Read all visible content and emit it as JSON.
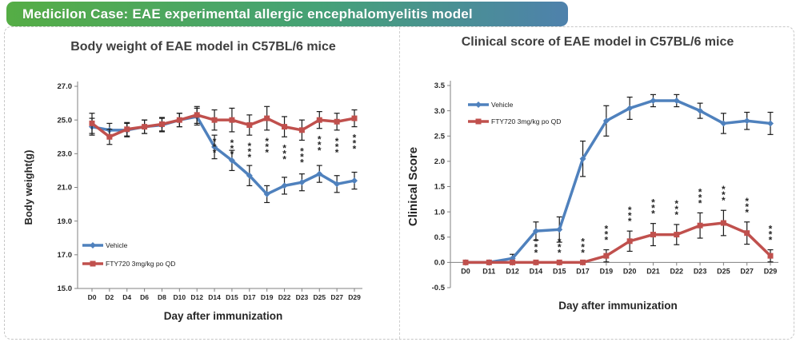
{
  "banner": {
    "text": "Medicilon Case: EAE experimental allergic encephalomyelitis model",
    "gradient_from": "#55ad45",
    "gradient_mid": "#45a276",
    "gradient_to": "#4e81ac",
    "text_color": "#ffffff"
  },
  "colors": {
    "vehicle_blue": "#4f81bd",
    "fty720_red": "#c0504d",
    "error_bar": "#1a1a1a",
    "axis_gray": "#808080",
    "label_dark": "#262626"
  },
  "chart_data": [
    {
      "type": "line",
      "title": "Body weight of EAE model in C57BL/6 mice",
      "xlabel": "Day after immunization",
      "ylabel": "Body weight(g)",
      "ylim": [
        15.0,
        27.0
      ],
      "xaxis_at": 15.0,
      "grid": false,
      "legend_position": "inside-bottom-left",
      "yticks": [
        {
          "v": 27.0,
          "label": "27.0"
        },
        {
          "v": 25.0,
          "label": "25.0"
        },
        {
          "v": 23.0,
          "label": "23.0"
        },
        {
          "v": 21.0,
          "label": "21.0"
        },
        {
          "v": 19.0,
          "label": "19.0"
        },
        {
          "v": 17.0,
          "label": "17.0"
        },
        {
          "v": 15.0,
          "label": "15.0"
        }
      ],
      "categories": [
        "D0",
        "D2",
        "D4",
        "D6",
        "D8",
        "D10",
        "D12",
        "D14",
        "D15",
        "D17",
        "D19",
        "D22",
        "D23",
        "D25",
        "D27",
        "D29"
      ],
      "series": [
        {
          "name": "Vehicle",
          "color": "#4f81bd",
          "marker": "diamond",
          "values": [
            24.6,
            24.4,
            24.4,
            24.6,
            24.7,
            25.0,
            25.2,
            23.4,
            22.6,
            21.7,
            20.6,
            21.1,
            21.3,
            21.8,
            21.2,
            21.4
          ],
          "err": [
            0.5,
            0.4,
            0.4,
            0.4,
            0.4,
            0.4,
            0.5,
            0.7,
            0.6,
            0.6,
            0.5,
            0.5,
            0.5,
            0.5,
            0.5,
            0.5
          ]
        },
        {
          "name": "FTY720 3mg/kg po QD",
          "color": "#c0504d",
          "marker": "square",
          "values": [
            24.8,
            24.0,
            24.45,
            24.6,
            24.75,
            25.0,
            25.3,
            25.0,
            25.0,
            24.7,
            25.1,
            24.6,
            24.4,
            25.0,
            24.9,
            25.1
          ],
          "err": [
            0.6,
            0.45,
            0.4,
            0.4,
            0.4,
            0.4,
            0.5,
            0.6,
            0.7,
            0.6,
            0.7,
            0.6,
            0.6,
            0.5,
            0.5,
            0.5
          ]
        }
      ],
      "significance": {
        "symbol": "***",
        "direction": "below",
        "categories": [
          "D14",
          "D15",
          "D17",
          "D19",
          "D22",
          "D23",
          "D25",
          "D27",
          "D29"
        ]
      }
    },
    {
      "type": "line",
      "title": "Clinical score of EAE model in C57BL/6 mice",
      "xlabel": "Day after immunization",
      "ylabel": "Clinical Score",
      "ylim": [
        -0.5,
        3.5
      ],
      "xaxis_at": 0.0,
      "grid": false,
      "legend_position": "inside-top-left",
      "yticks": [
        {
          "v": 3.5,
          "label": "3.5"
        },
        {
          "v": 3.0,
          "label": "3.0"
        },
        {
          "v": 2.5,
          "label": "2.5"
        },
        {
          "v": 2.0,
          "label": "2.0"
        },
        {
          "v": 1.5,
          "label": "1.5"
        },
        {
          "v": 1.0,
          "label": "1.0"
        },
        {
          "v": 0.5,
          "label": "0.5"
        },
        {
          "v": 0.0,
          "label": "0.0"
        },
        {
          "v": -0.5,
          "label": "-0.5"
        }
      ],
      "categories": [
        "D0",
        "D11",
        "D12",
        "D14",
        "D15",
        "D17",
        "D19",
        "D20",
        "D21",
        "D22",
        "D23",
        "D25",
        "D27",
        "D29"
      ],
      "series": [
        {
          "name": "Vehicle",
          "color": "#4f81bd",
          "marker": "diamond",
          "values": [
            0.0,
            0.0,
            0.08,
            0.62,
            0.65,
            2.05,
            2.8,
            3.05,
            3.2,
            3.2,
            3.0,
            2.75,
            2.8,
            2.75
          ],
          "err": [
            0,
            0,
            0.08,
            0.18,
            0.25,
            0.35,
            0.3,
            0.22,
            0.12,
            0.12,
            0.15,
            0.2,
            0.17,
            0.22
          ]
        },
        {
          "name": "FTY720 3mg/kg po QD",
          "color": "#c0504d",
          "marker": "square",
          "values": [
            0.0,
            0.0,
            0.0,
            0.0,
            0.0,
            0.0,
            0.13,
            0.42,
            0.55,
            0.55,
            0.73,
            0.78,
            0.58,
            0.13
          ],
          "err": [
            0,
            0,
            0,
            0,
            0,
            0,
            0.12,
            0.2,
            0.22,
            0.2,
            0.25,
            0.25,
            0.22,
            0.12
          ]
        }
      ],
      "significance": {
        "symbol": "***",
        "direction": "above",
        "categories": [
          "D14",
          "D15",
          "D17",
          "D19",
          "D20",
          "D21",
          "D22",
          "D23",
          "D25",
          "D27",
          "D29"
        ]
      }
    }
  ]
}
